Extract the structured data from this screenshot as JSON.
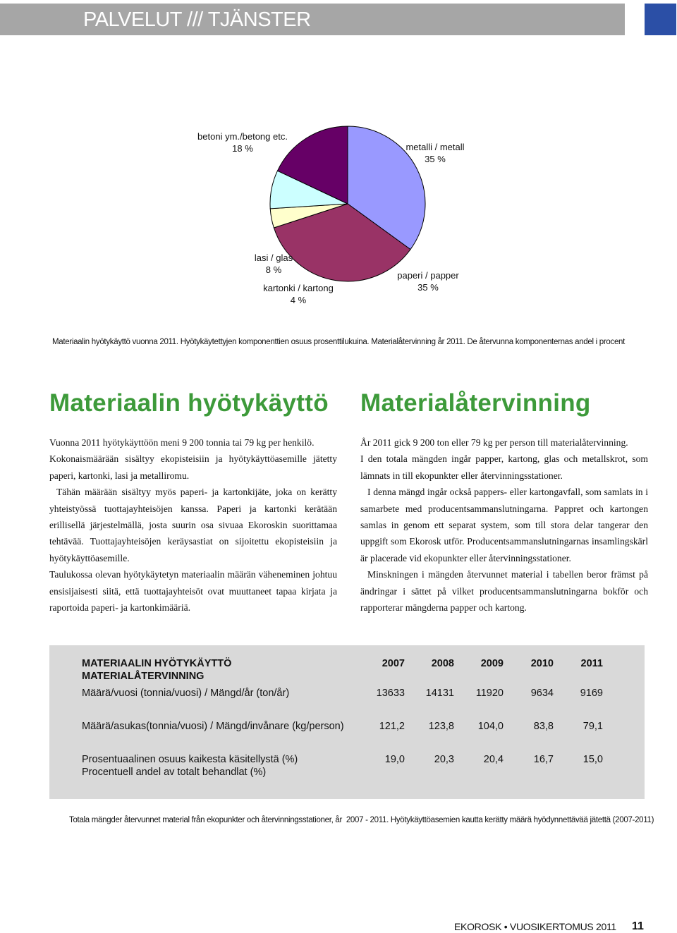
{
  "header": {
    "title": "PALVELUT /// TJÄNSTER"
  },
  "chart_data": {
    "type": "pie",
    "categories": [
      "metalli / metall",
      "paperi / papper",
      "kartonki / kartong",
      "lasi / glas",
      "betoni ym./betong etc."
    ],
    "values": [
      35,
      35,
      4,
      8,
      18
    ],
    "value_labels": [
      "35 %",
      "35 %",
      "4 %",
      "8 %",
      "18 %"
    ],
    "colors": [
      "#9999ff",
      "#993366",
      "#ffffcc",
      "#ccffff",
      "#660066"
    ],
    "caption": "Materiaalin hyötykäyttö vuonna 2011. Hyötykäytettyjen komponenttien osuus prosenttilukuina. Materialåtervinning år 2011. De återvunna komponenternas andel i procent"
  },
  "left": {
    "heading": "Materiaalin hyötykäyttö",
    "paragraphs": [
      "Vuonna 2011 hyötykäyttöön meni 9 200 tonnia tai 79 kg per henkilö.",
      "Kokonaismäärään sisältyy ekopisteisiin ja hyötykäyttöasemille jätetty paperi, kartonki, lasi ja metalliromu.",
      "Tähän määrään sisältyy myös paperi- ja kartonkijäte, joka on kerätty yhteistyössä tuottajayhteisöjen kanssa. Paperi ja kartonki kerätään erillisellä järjestelmällä, josta suurin osa sivuaa Ekoroskin suorittamaa tehtävää. Tuottajayhteisöjen keräysastiat on sijoitettu ekopisteisiin ja hyötykäyttöasemille.",
      "Taulukossa olevan hyötykäytetyn materiaalin määrän väheneminen johtuu ensisijaisesti siitä, että tuottajayhteisöt ovat muuttaneet tapaa kirjata ja raportoida paperi- ja kartonkimääriä."
    ]
  },
  "right": {
    "heading": "Materialåtervinning",
    "paragraphs": [
      "År 2011 gick 9 200 ton eller 79 kg per person till materialåtervinning.",
      "I den totala mängden ingår papper, kartong, glas och metallskrot, som lämnats in till ekopunkter eller återvinningsstationer.",
      "I denna mängd ingår också pappers- eller kartongavfall, som samlats in i samarbete med producentsammanslutningarna. Pappret och kartongen samlas in genom ett separat system, som till stora delar tangerar den uppgift som Ekorosk utför. Producentsammanslutningarnas insamlingskärl är placerade vid ekopunkter eller återvinningsstationer.",
      "Minskningen i mängden återvunnet material i tabellen beror främst på ändringar i sättet på vilket producentsammanslutningarna bokför och rapporterar mängderna papper och kartong."
    ]
  },
  "table": {
    "header": [
      "MATERIAALIN HYÖTYKÄYTTÖ\nMATERIALÅTERVINNING",
      "2007",
      "2008",
      "2009",
      "2010",
      "2011"
    ],
    "rows": [
      [
        "Määrä/vuosi (tonnia/vuosi) / Mängd/år (ton/år)",
        "13633",
        "14131",
        "11920",
        "9634",
        "9169"
      ],
      [
        "Määrä/asukas(tonnia/vuosi) / Mängd/invånare (kg/person)",
        "121,2",
        "123,8",
        "104,0",
        "83,8",
        "79,1"
      ],
      [
        "Prosentuaalinen osuus kaikesta käsitellystä (%)\nProcentuell andel av totalt behandlat (%)",
        "19,0",
        "20,3",
        "20,4",
        "16,7",
        "15,0"
      ]
    ],
    "note": "Totala mängder återvunnet material från ekopunkter och återvinningsstationer, år  2007 - 2011. Hyötykäyttöasemien kautta kerätty määrä hyödynnettävää jätettä (2007-2011)"
  },
  "footer": {
    "publication": "EKOROSK • VUOSIKERTOMUS 2011",
    "page": "11"
  }
}
